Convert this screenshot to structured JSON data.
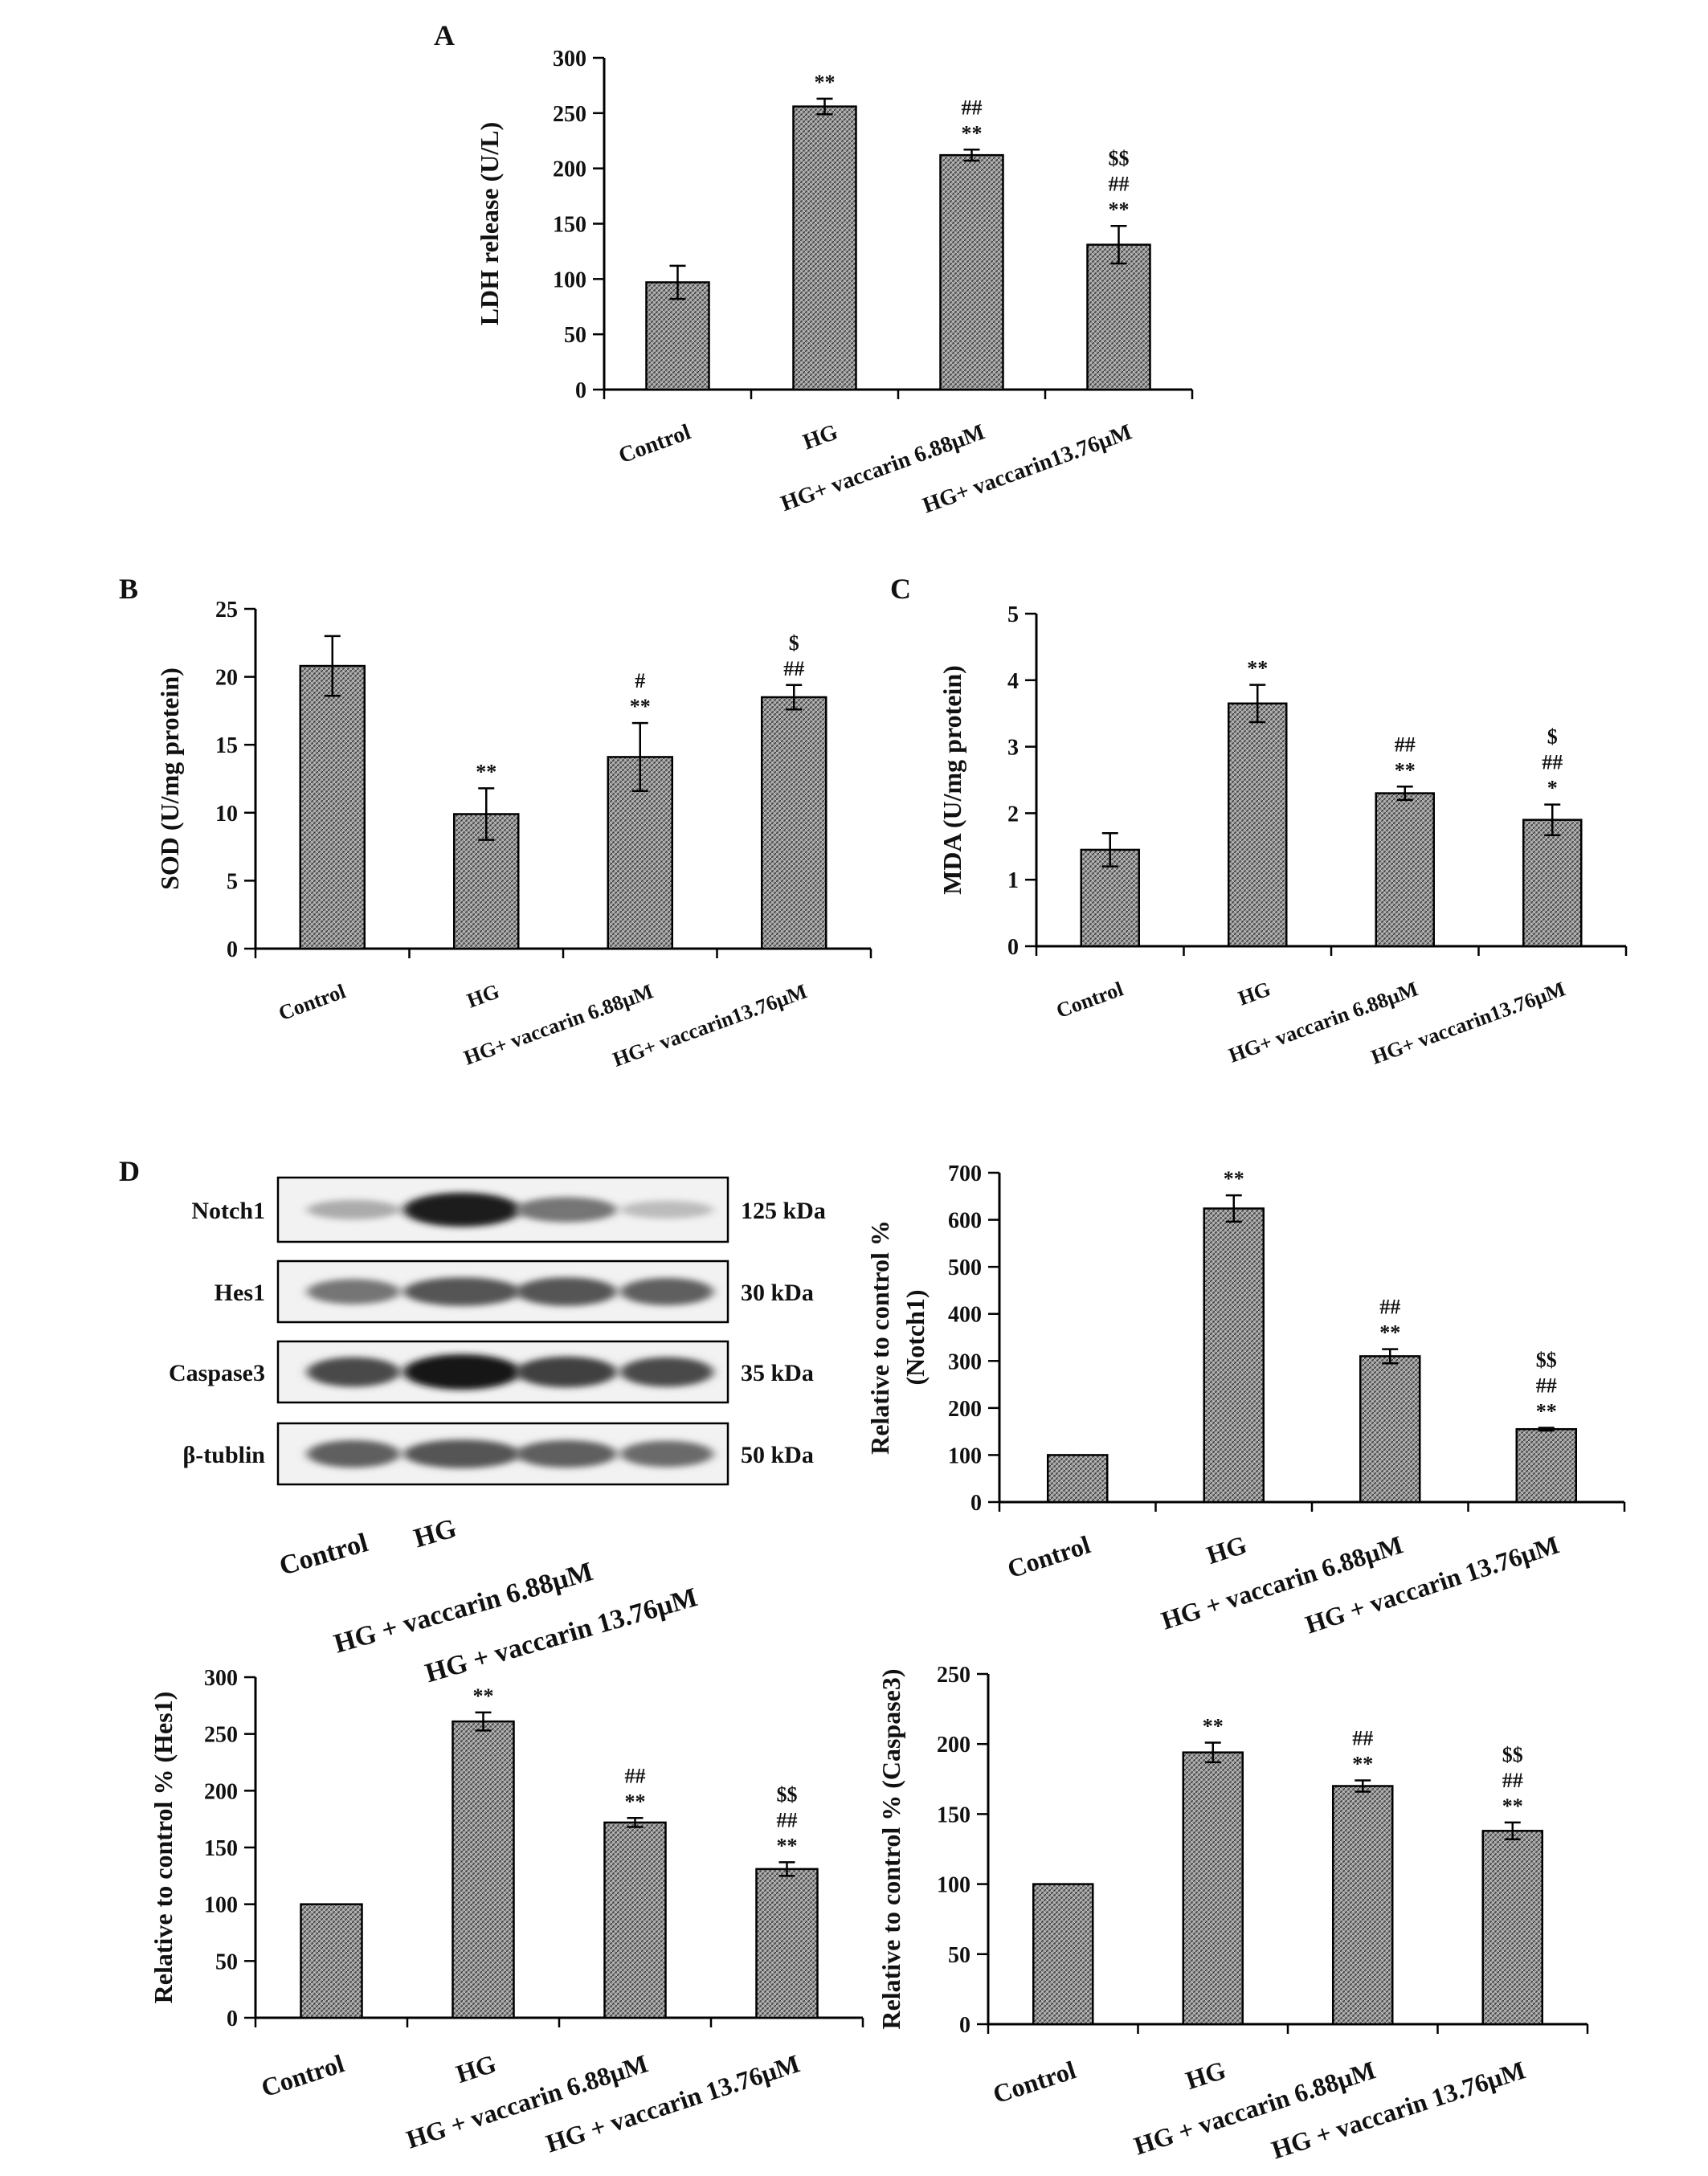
{
  "figure": {
    "panel_letters": [
      "A",
      "B",
      "C",
      "D"
    ],
    "western_blot": {
      "rows": [
        {
          "protein": "Notch1",
          "kda": "125 kDa",
          "intensity": [
            0.3,
            0.95,
            0.55,
            0.22
          ]
        },
        {
          "protein": "Hes1",
          "kda": "30 kDa",
          "intensity": [
            0.55,
            0.7,
            0.7,
            0.65
          ]
        },
        {
          "protein": "Caspase3",
          "kda": "35 kDa",
          "intensity": [
            0.75,
            1.0,
            0.8,
            0.75
          ]
        },
        {
          "protein": "β-tublin",
          "kda": "50 kDa",
          "intensity": [
            0.65,
            0.7,
            0.65,
            0.6
          ]
        }
      ],
      "lanes": [
        "Control",
        "HG",
        "HG + vaccarin 6.88μM",
        "HG + vaccarin 13.76μM"
      ]
    },
    "colors": {
      "bar_fill": "#8c8c8c",
      "axis": "#000000",
      "blot_band": "#1a1a1a",
      "blot_bg": "#f2f2f2"
    }
  },
  "chart_data": [
    {
      "id": "A",
      "type": "bar",
      "categories": [
        "Control",
        "HG",
        "HG+ vaccarin 6.88μM",
        "HG+ vaccarin13.76μM"
      ],
      "values": [
        97,
        256,
        212,
        131
      ],
      "errors": [
        15,
        7,
        5,
        17
      ],
      "ylabel": "LDH release (U/L)",
      "xlabel": "",
      "ylim": [
        0,
        300
      ],
      "yticks": [
        0,
        50,
        100,
        150,
        200,
        250,
        300
      ],
      "annotations": [
        [],
        [
          "**"
        ],
        [
          "##",
          "**"
        ],
        [
          "$$",
          "##",
          "**"
        ]
      ]
    },
    {
      "id": "B",
      "type": "bar",
      "categories": [
        "Control",
        "HG",
        "HG+ vaccarin 6.88μM",
        "HG+ vaccarin13.76μM"
      ],
      "values": [
        20.8,
        9.9,
        14.1,
        18.5
      ],
      "errors": [
        2.2,
        1.9,
        2.5,
        0.9
      ],
      "ylabel": "SOD (U/mg protein)",
      "xlabel": "",
      "ylim": [
        0,
        25
      ],
      "yticks": [
        0,
        5,
        10,
        15,
        20,
        25
      ],
      "annotations": [
        [],
        [
          "**"
        ],
        [
          "#",
          "**"
        ],
        [
          "$",
          "##"
        ]
      ]
    },
    {
      "id": "C",
      "type": "bar",
      "categories": [
        "Control",
        "HG",
        "HG+ vaccarin 6.88μM",
        "HG+ vaccarin13.76μM"
      ],
      "values": [
        1.45,
        3.65,
        2.3,
        1.9
      ],
      "errors": [
        0.25,
        0.28,
        0.1,
        0.23
      ],
      "ylabel": "MDA (U/mg protein)",
      "xlabel": "",
      "ylim": [
        0,
        5
      ],
      "yticks": [
        0,
        1,
        2,
        3,
        4,
        5
      ],
      "annotations": [
        [],
        [
          "**"
        ],
        [
          "##",
          "**"
        ],
        [
          "$",
          "##",
          "*"
        ]
      ]
    },
    {
      "id": "D-Notch1",
      "type": "bar",
      "categories": [
        "Control",
        "HG",
        "HG + vaccarin 6.88μM",
        "HG + vaccarin 13.76μM"
      ],
      "values": [
        100,
        624,
        310,
        155
      ],
      "errors": [
        0,
        28,
        15,
        3
      ],
      "ylabel": "Relative to control %",
      "ylabel2": "(Notch1)",
      "xlabel": "",
      "ylim": [
        0,
        700
      ],
      "yticks": [
        0,
        100,
        200,
        300,
        400,
        500,
        600,
        700
      ],
      "annotations": [
        [],
        [
          "**"
        ],
        [
          "##",
          "**"
        ],
        [
          "$$",
          "##",
          "**"
        ]
      ]
    },
    {
      "id": "D-Hes1",
      "type": "bar",
      "categories": [
        "Control",
        "HG",
        "HG + vaccarin 6.88μM",
        "HG + vaccarin 13.76μM"
      ],
      "values": [
        100,
        261,
        172,
        131
      ],
      "errors": [
        0,
        8,
        4,
        6
      ],
      "ylabel": "Relative to control % (Hes1)",
      "xlabel": "",
      "ylim": [
        0,
        300
      ],
      "yticks": [
        0,
        50,
        100,
        150,
        200,
        250,
        300
      ],
      "annotations": [
        [],
        [
          "**"
        ],
        [
          "##",
          "**"
        ],
        [
          "$$",
          "##",
          "**"
        ]
      ]
    },
    {
      "id": "D-Caspase3",
      "type": "bar",
      "categories": [
        "Control",
        "HG",
        "HG + vaccarin 6.88μM",
        "HG + vaccarin 13.76μM"
      ],
      "values": [
        100,
        194,
        170,
        138
      ],
      "errors": [
        0,
        7,
        4,
        6
      ],
      "ylabel": "Relative to control % (Caspase3)",
      "xlabel": "",
      "ylim": [
        0,
        250
      ],
      "yticks": [
        0,
        50,
        100,
        150,
        200,
        250
      ],
      "annotations": [
        [],
        [
          "**"
        ],
        [
          "##",
          "**"
        ],
        [
          "$$",
          "##",
          "**"
        ]
      ]
    }
  ]
}
